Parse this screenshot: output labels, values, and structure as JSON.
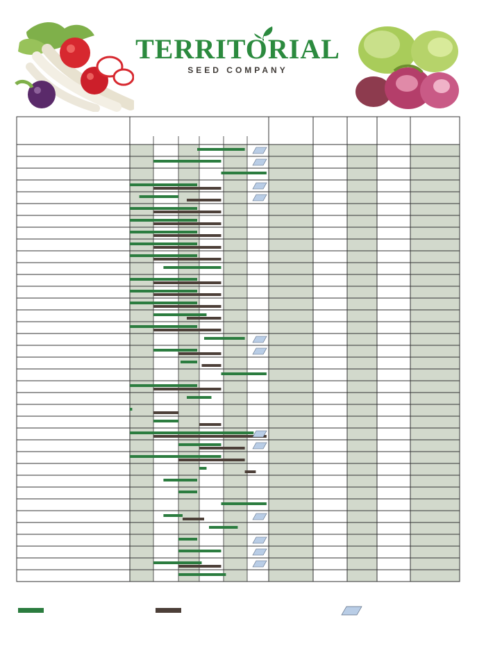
{
  "brand": {
    "name": "TERRITORIAL",
    "subtitle": "SEED COMPANY",
    "color_green": "#2b7c3f",
    "color_brown": "#4c3f38",
    "color_shade": "#d2d9cc",
    "color_frost": "#b9cde6"
  },
  "illustrations": {
    "left": "radish-bunch-illustration",
    "right": "lettuce-greens-illustration"
  },
  "header_cells": [
    "",
    "",
    "",
    "",
    "",
    "",
    "",
    ""
  ],
  "chart_data": {
    "type": "table",
    "title": "",
    "columns_shaded": [
      true,
      false,
      true,
      false,
      true,
      false,
      true,
      false,
      true,
      false,
      true
    ],
    "rows": [
      {
        "label": "",
        "green": [
          [
            2.9,
            4.9
          ]
        ],
        "brown": [],
        "frost": true
      },
      {
        "label": "",
        "green": [
          [
            1.0,
            3.9
          ]
        ],
        "brown": [],
        "frost": true
      },
      {
        "label": "",
        "green": [
          [
            3.9,
            5.9
          ]
        ],
        "brown": [],
        "frost": false
      },
      {
        "label": "",
        "green": [
          [
            0.0,
            2.9
          ]
        ],
        "brown": [
          [
            1.0,
            3.9
          ]
        ],
        "frost": true
      },
      {
        "label": "",
        "green": [
          [
            0.4,
            2.0
          ]
        ],
        "brown": [
          [
            2.4,
            3.9
          ]
        ],
        "frost": true
      },
      {
        "label": "",
        "green": [
          [
            0.0,
            2.9
          ]
        ],
        "brown": [
          [
            1.0,
            3.9
          ]
        ],
        "frost": false
      },
      {
        "label": "",
        "green": [
          [
            0.0,
            2.9
          ]
        ],
        "brown": [
          [
            1.0,
            3.9
          ]
        ],
        "frost": false
      },
      {
        "label": "",
        "green": [
          [
            0.0,
            2.9
          ]
        ],
        "brown": [
          [
            1.0,
            3.9
          ]
        ],
        "frost": false
      },
      {
        "label": "",
        "green": [
          [
            0.0,
            2.9
          ]
        ],
        "brown": [
          [
            1.0,
            3.9
          ]
        ],
        "frost": false
      },
      {
        "label": "",
        "green": [
          [
            0.0,
            2.9
          ]
        ],
        "brown": [
          [
            1.0,
            3.9
          ]
        ],
        "frost": false
      },
      {
        "label": "",
        "green": [
          [
            1.4,
            3.9
          ]
        ],
        "brown": [],
        "frost": false
      },
      {
        "label": "",
        "green": [
          [
            0.0,
            2.9
          ]
        ],
        "brown": [
          [
            1.0,
            3.9
          ]
        ],
        "frost": false
      },
      {
        "label": "",
        "green": [
          [
            0.0,
            2.9
          ]
        ],
        "brown": [
          [
            1.0,
            3.9
          ]
        ],
        "frost": false
      },
      {
        "label": "",
        "green": [
          [
            0.0,
            2.9
          ]
        ],
        "brown": [
          [
            1.0,
            3.9
          ]
        ],
        "frost": false
      },
      {
        "label": "",
        "green": [
          [
            1.0,
            3.3
          ]
        ],
        "brown": [
          [
            2.4,
            3.9
          ]
        ],
        "frost": false
      },
      {
        "label": "",
        "green": [
          [
            0.0,
            2.9
          ]
        ],
        "brown": [
          [
            1.0,
            3.9
          ]
        ],
        "frost": false
      },
      {
        "label": "",
        "green": [
          [
            3.2,
            4.9
          ]
        ],
        "brown": [],
        "frost": true
      },
      {
        "label": "",
        "green": [
          [
            1.0,
            2.9
          ]
        ],
        "brown": [
          [
            2.0,
            3.9
          ]
        ],
        "frost": true
      },
      {
        "label": "",
        "green": [
          [
            2.1,
            2.9
          ]
        ],
        "brown": [
          [
            3.1,
            3.9
          ]
        ],
        "frost": false
      },
      {
        "label": "",
        "green": [
          [
            3.9,
            5.9
          ]
        ],
        "brown": [],
        "frost": false
      },
      {
        "label": "",
        "green": [
          [
            0.0,
            2.9
          ]
        ],
        "brown": [
          [
            1.0,
            3.9
          ]
        ],
        "frost": false
      },
      {
        "label": "",
        "green": [
          [
            2.4,
            3.5
          ]
        ],
        "brown": [],
        "frost": false
      },
      {
        "label": "",
        "green": [
          [
            0.0,
            0.1
          ]
        ],
        "brown": [
          [
            1.0,
            2.0
          ]
        ],
        "frost": false
      },
      {
        "label": "",
        "green": [
          [
            1.0,
            2.0
          ]
        ],
        "brown": [
          [
            3.0,
            3.9
          ]
        ],
        "frost": false
      },
      {
        "label": "",
        "green": [
          [
            0.0,
            5.3
          ]
        ],
        "brown": [
          [
            1.0,
            5.9
          ]
        ],
        "frost": true
      },
      {
        "label": "",
        "green": [
          [
            2.0,
            3.9
          ]
        ],
        "brown": [
          [
            3.0,
            4.9
          ]
        ],
        "frost": true
      },
      {
        "label": "",
        "green": [
          [
            0.0,
            3.9
          ]
        ],
        "brown": [
          [
            2.0,
            4.9
          ]
        ],
        "frost": false
      },
      {
        "label": "",
        "green": [
          [
            3.0,
            3.3
          ]
        ],
        "brown": [
          [
            4.9,
            5.4
          ]
        ],
        "frost": false
      },
      {
        "label": "",
        "green": [
          [
            1.4,
            2.9
          ]
        ],
        "brown": [],
        "frost": false
      },
      {
        "label": "",
        "green": [
          [
            2.0,
            2.9
          ]
        ],
        "brown": [],
        "frost": false
      },
      {
        "label": "",
        "green": [
          [
            3.9,
            5.9
          ]
        ],
        "brown": [],
        "frost": false
      },
      {
        "label": "",
        "green": [
          [
            1.4,
            2.2
          ]
        ],
        "brown": [
          [
            2.2,
            3.2
          ]
        ],
        "frost": true
      },
      {
        "label": "",
        "green": [
          [
            3.4,
            4.6
          ]
        ],
        "brown": [],
        "frost": false
      },
      {
        "label": "",
        "green": [
          [
            2.0,
            2.9
          ]
        ],
        "brown": [],
        "frost": true
      },
      {
        "label": "",
        "green": [
          [
            2.0,
            3.9
          ]
        ],
        "brown": [],
        "frost": true
      },
      {
        "label": "",
        "green": [
          [
            1.0,
            3.1
          ]
        ],
        "brown": [
          [
            2.0,
            3.9
          ]
        ],
        "frost": true
      },
      {
        "label": "",
        "green": [
          [
            2.0,
            4.1
          ]
        ],
        "brown": [],
        "frost": false
      }
    ],
    "legend": [
      {
        "key": "green",
        "label": ""
      },
      {
        "key": "brown",
        "label": ""
      },
      {
        "key": "frost",
        "label": ""
      }
    ]
  }
}
